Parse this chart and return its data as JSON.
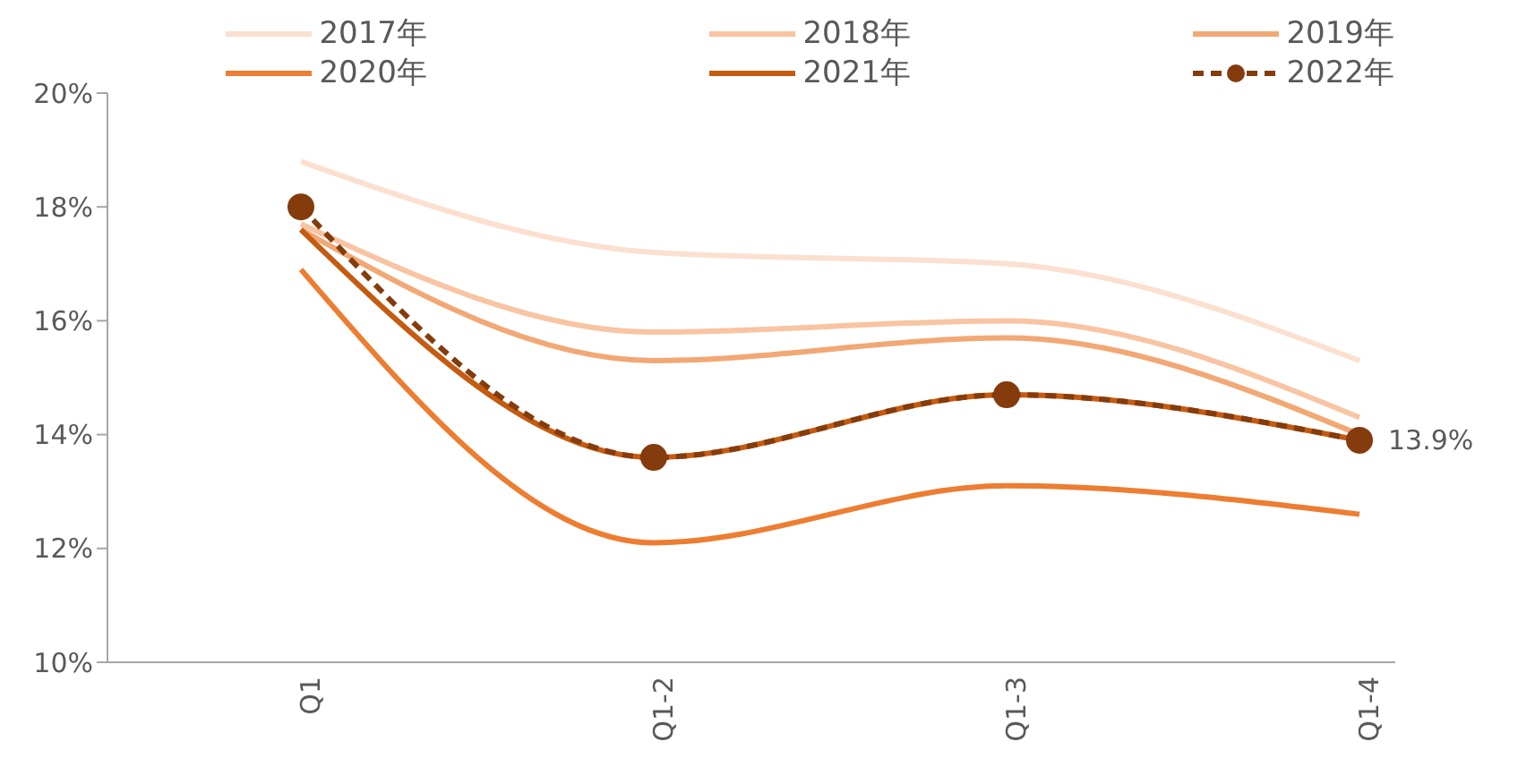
{
  "chart_data": {
    "type": "line",
    "categories": [
      "Q1",
      "Q1-2",
      "Q1-3",
      "Q1-4"
    ],
    "ylim": [
      10,
      20
    ],
    "yticks": [
      {
        "value": 10,
        "label": "10%"
      },
      {
        "value": 12,
        "label": "12%"
      },
      {
        "value": 14,
        "label": "14%"
      },
      {
        "value": 16,
        "label": "16%"
      },
      {
        "value": 18,
        "label": "18%"
      },
      {
        "value": 20,
        "label": "20%"
      }
    ],
    "grid": false,
    "legend": "top",
    "marker": "none",
    "line_style": "solid",
    "series": [
      {
        "name": "2017年",
        "color": "#fbe0d0",
        "values": [
          18.8,
          17.2,
          17.0,
          15.3
        ]
      },
      {
        "name": "2018年",
        "color": "#f8c4a2",
        "values": [
          17.7,
          15.8,
          16.0,
          14.3
        ]
      },
      {
        "name": "2019年",
        "color": "#f2a874",
        "values": [
          17.6,
          15.3,
          15.7,
          14.0
        ]
      },
      {
        "name": "2020年",
        "color": "#ed7d31",
        "values": [
          16.9,
          12.1,
          13.1,
          12.6
        ]
      },
      {
        "name": "2021年",
        "color": "#c55a11",
        "values": [
          17.6,
          13.6,
          14.7,
          13.9
        ]
      },
      {
        "name": "2022年",
        "color": "#843c0c",
        "values": [
          18.0,
          13.6,
          14.7,
          13.9
        ],
        "marker": "circle",
        "line_style": "dashed",
        "value_labels": [
          null,
          null,
          null,
          "13.9%"
        ]
      }
    ]
  }
}
